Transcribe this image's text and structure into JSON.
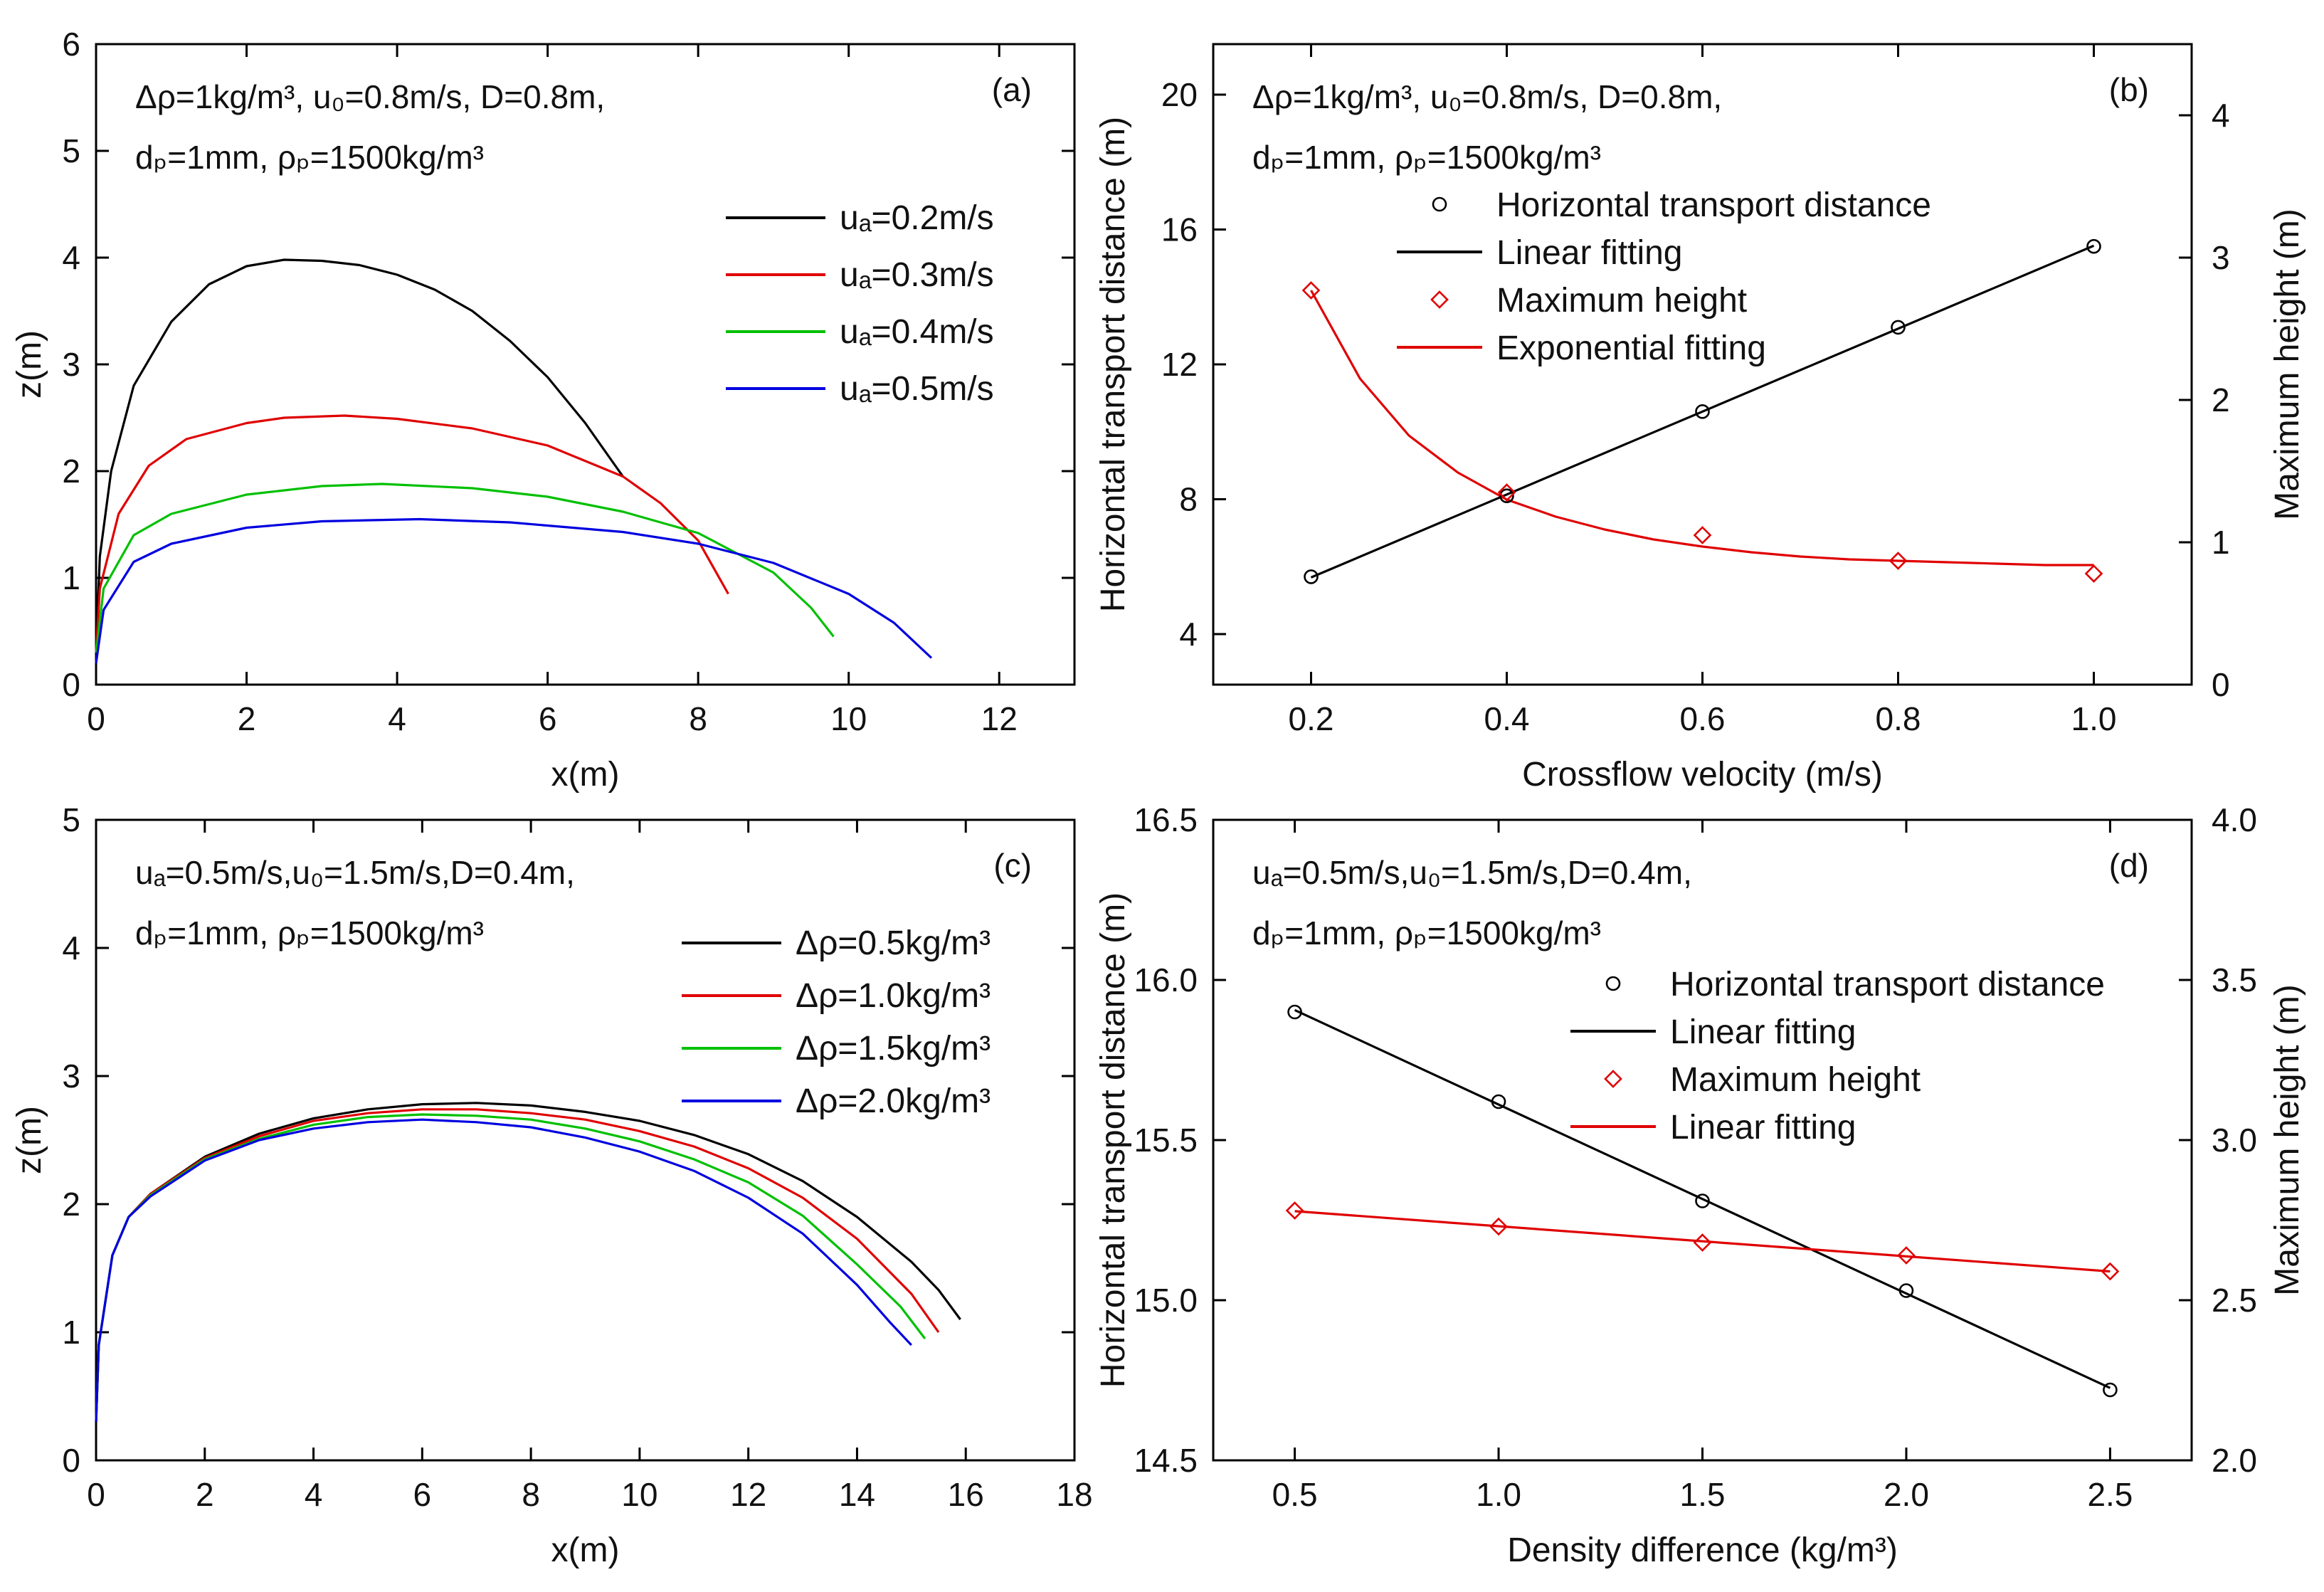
{
  "chart_data": [
    {
      "id": "a",
      "type": "line",
      "panel_label": "(a)",
      "annotation": [
        "Δρ=1kg/m³, u₀=0.8m/s, D=0.8m,",
        "dₚ=1mm, ρₚ=1500kg/m³"
      ],
      "xlabel": "x(m)",
      "ylabel": "z(m)",
      "xlim": [
        0,
        13
      ],
      "ylim": [
        0,
        6
      ],
      "xticks": [
        "0",
        "2",
        "4",
        "6",
        "8",
        "10",
        "12"
      ],
      "yticks": [
        "0",
        "1",
        "2",
        "3",
        "4",
        "5",
        "6"
      ],
      "legend_position": "right",
      "series": [
        {
          "name": "uₐ=0.2m/s",
          "color": "#000000",
          "x": [
            0,
            0.05,
            0.2,
            0.5,
            1.0,
            1.5,
            2.0,
            2.5,
            3.0,
            3.5,
            4.0,
            4.5,
            5.0,
            5.5,
            6.0,
            6.5,
            6.8,
            7.0
          ],
          "y": [
            0.3,
            1.2,
            2.0,
            2.8,
            3.4,
            3.75,
            3.92,
            3.98,
            3.97,
            3.93,
            3.84,
            3.7,
            3.5,
            3.22,
            2.88,
            2.45,
            2.15,
            1.95
          ]
        },
        {
          "name": "uₐ=0.3m/s",
          "color": "#e00000",
          "x": [
            0,
            0.05,
            0.3,
            0.7,
            1.2,
            2.0,
            2.5,
            3.3,
            4.0,
            5.0,
            6.0,
            7.0,
            7.5,
            8.0,
            8.4
          ],
          "y": [
            0.3,
            0.9,
            1.6,
            2.05,
            2.3,
            2.45,
            2.5,
            2.52,
            2.49,
            2.4,
            2.24,
            1.95,
            1.7,
            1.35,
            0.85
          ]
        },
        {
          "name": "uₐ=0.4m/s",
          "color": "#00c000",
          "x": [
            0,
            0.1,
            0.5,
            1.0,
            2.0,
            3.0,
            3.8,
            5.0,
            6.0,
            7.0,
            8.0,
            9.0,
            9.5,
            9.8
          ],
          "y": [
            0.3,
            0.9,
            1.4,
            1.6,
            1.78,
            1.86,
            1.88,
            1.84,
            1.76,
            1.62,
            1.42,
            1.05,
            0.72,
            0.45
          ]
        },
        {
          "name": "uₐ=0.5m/s",
          "color": "#0000e0",
          "x": [
            0,
            0.1,
            0.5,
            1.0,
            2.0,
            3.0,
            4.3,
            5.5,
            7.0,
            8.0,
            9.0,
            10.0,
            10.6,
            11.1
          ],
          "y": [
            0.2,
            0.7,
            1.15,
            1.32,
            1.47,
            1.53,
            1.55,
            1.52,
            1.43,
            1.32,
            1.14,
            0.85,
            0.58,
            0.25
          ]
        }
      ]
    },
    {
      "id": "b",
      "type": "scatter+line",
      "panel_label": "(b)",
      "annotation": [
        "Δρ=1kg/m³, u₀=0.8m/s, D=0.8m,",
        "dₚ=1mm, ρₚ=1500kg/m³"
      ],
      "xlabel": "Crossflow velocity (m/s)",
      "ylabel": "Horizontal transport distance (m)",
      "y2label": "Maximum height (m)",
      "xlim": [
        0.1,
        1.1
      ],
      "ylim": [
        2.5,
        21.5
      ],
      "y2lim": [
        0,
        4.5
      ],
      "xticks": [
        "0.2",
        "0.4",
        "0.6",
        "0.8",
        "1.0"
      ],
      "yticks": [
        "4",
        "8",
        "12",
        "16",
        "20"
      ],
      "y2ticks": [
        "0",
        "1",
        "2",
        "3",
        "4"
      ],
      "legend": [
        "Horizontal transport distance",
        "Linear fitting",
        "Maximum height",
        "Exponential fitting"
      ],
      "x": [
        0.2,
        0.4,
        0.6,
        0.8,
        1.0
      ],
      "horizontal_distance": [
        5.7,
        8.1,
        10.6,
        13.1,
        15.5
      ],
      "max_height": [
        2.77,
        1.35,
        1.05,
        0.87,
        0.78
      ],
      "exp_fit": {
        "x": [
          0.2,
          0.25,
          0.3,
          0.35,
          0.4,
          0.45,
          0.5,
          0.55,
          0.6,
          0.65,
          0.7,
          0.75,
          0.8,
          0.85,
          0.9,
          0.95,
          1.0
        ],
        "y": [
          2.77,
          2.15,
          1.75,
          1.49,
          1.3,
          1.18,
          1.09,
          1.02,
          0.97,
          0.93,
          0.9,
          0.88,
          0.87,
          0.86,
          0.85,
          0.84,
          0.84
        ]
      }
    },
    {
      "id": "c",
      "type": "line",
      "panel_label": "(c)",
      "annotation": [
        "uₐ=0.5m/s,u₀=1.5m/s,D=0.4m,",
        "dₚ=1mm, ρₚ=1500kg/m³"
      ],
      "xlabel": "x(m)",
      "ylabel": "z(m)",
      "xlim": [
        0,
        18
      ],
      "ylim": [
        0,
        5
      ],
      "xticks": [
        "0",
        "2",
        "4",
        "6",
        "8",
        "10",
        "12",
        "14",
        "16",
        "18"
      ],
      "yticks": [
        "0",
        "1",
        "2",
        "3",
        "4",
        "5"
      ],
      "legend_position": "top-right",
      "series": [
        {
          "name": "Δρ=0.5kg/m³",
          "color": "#000000",
          "x": [
            0,
            0.05,
            0.3,
            0.6,
            1.0,
            2.0,
            3.0,
            4.0,
            5.0,
            6.0,
            7.0,
            8.0,
            9.0,
            10.0,
            11.0,
            12.0,
            13.0,
            14.0,
            15.0,
            15.5,
            15.9
          ],
          "y": [
            0.3,
            0.9,
            1.6,
            1.9,
            2.08,
            2.37,
            2.55,
            2.67,
            2.74,
            2.78,
            2.79,
            2.77,
            2.72,
            2.65,
            2.54,
            2.39,
            2.18,
            1.9,
            1.55,
            1.33,
            1.1
          ]
        },
        {
          "name": "Δρ=1.0kg/m³",
          "color": "#e00000",
          "x": [
            0,
            0.05,
            0.3,
            0.6,
            1.0,
            2.0,
            3.0,
            4.0,
            5.0,
            6.0,
            7.0,
            8.0,
            9.0,
            10.0,
            11.0,
            12.0,
            13.0,
            14.0,
            15.0,
            15.5
          ],
          "y": [
            0.3,
            0.9,
            1.6,
            1.9,
            2.08,
            2.36,
            2.53,
            2.65,
            2.71,
            2.74,
            2.74,
            2.71,
            2.66,
            2.57,
            2.45,
            2.28,
            2.05,
            1.73,
            1.3,
            1.0
          ]
        },
        {
          "name": "Δρ=1.5kg/m³",
          "color": "#00c000",
          "x": [
            0,
            0.05,
            0.3,
            0.6,
            1.0,
            2.0,
            3.0,
            4.0,
            5.0,
            6.0,
            7.0,
            8.0,
            9.0,
            10.0,
            11.0,
            12.0,
            13.0,
            14.0,
            14.8,
            15.25
          ],
          "y": [
            0.3,
            0.9,
            1.6,
            1.9,
            2.07,
            2.35,
            2.51,
            2.62,
            2.68,
            2.7,
            2.69,
            2.66,
            2.59,
            2.49,
            2.35,
            2.17,
            1.91,
            1.53,
            1.2,
            0.95
          ]
        },
        {
          "name": "Δρ=2.0kg/m³",
          "color": "#0000e0",
          "x": [
            0,
            0.05,
            0.3,
            0.6,
            1.0,
            2.0,
            3.0,
            4.0,
            5.0,
            6.0,
            7.0,
            8.0,
            9.0,
            10.0,
            11.0,
            12.0,
            13.0,
            14.0,
            14.6,
            15.0
          ],
          "y": [
            0.3,
            0.9,
            1.6,
            1.9,
            2.06,
            2.34,
            2.5,
            2.59,
            2.64,
            2.66,
            2.64,
            2.6,
            2.52,
            2.41,
            2.26,
            2.05,
            1.77,
            1.37,
            1.08,
            0.9
          ]
        }
      ]
    },
    {
      "id": "d",
      "type": "scatter+line",
      "panel_label": "(d)",
      "annotation": [
        "uₐ=0.5m/s,u₀=1.5m/s,D=0.4m,",
        "dₚ=1mm, ρₚ=1500kg/m³"
      ],
      "xlabel": "Density difference (kg/m³)",
      "ylabel": "Horizontal transport distance (m)",
      "y2label": "Maximum height (m)",
      "xlim": [
        0.3,
        2.7
      ],
      "ylim": [
        14.5,
        16.5
      ],
      "y2lim": [
        2.0,
        4.0
      ],
      "xticks": [
        "0.5",
        "1.0",
        "1.5",
        "2.0",
        "2.5"
      ],
      "yticks": [
        "14.5",
        "15.0",
        "15.5",
        "16.0",
        "16.5"
      ],
      "y2ticks": [
        "2.0",
        "2.5",
        "3.0",
        "3.5",
        "4.0"
      ],
      "legend": [
        "Horizontal transport distance",
        "Linear fitting",
        "Maximum height",
        "Linear fitting"
      ],
      "x": [
        0.5,
        1.0,
        1.5,
        2.0,
        2.5
      ],
      "horizontal_distance": [
        15.9,
        15.62,
        15.31,
        15.03,
        14.72
      ],
      "max_height": [
        2.78,
        2.73,
        2.68,
        2.64,
        2.59
      ]
    }
  ]
}
